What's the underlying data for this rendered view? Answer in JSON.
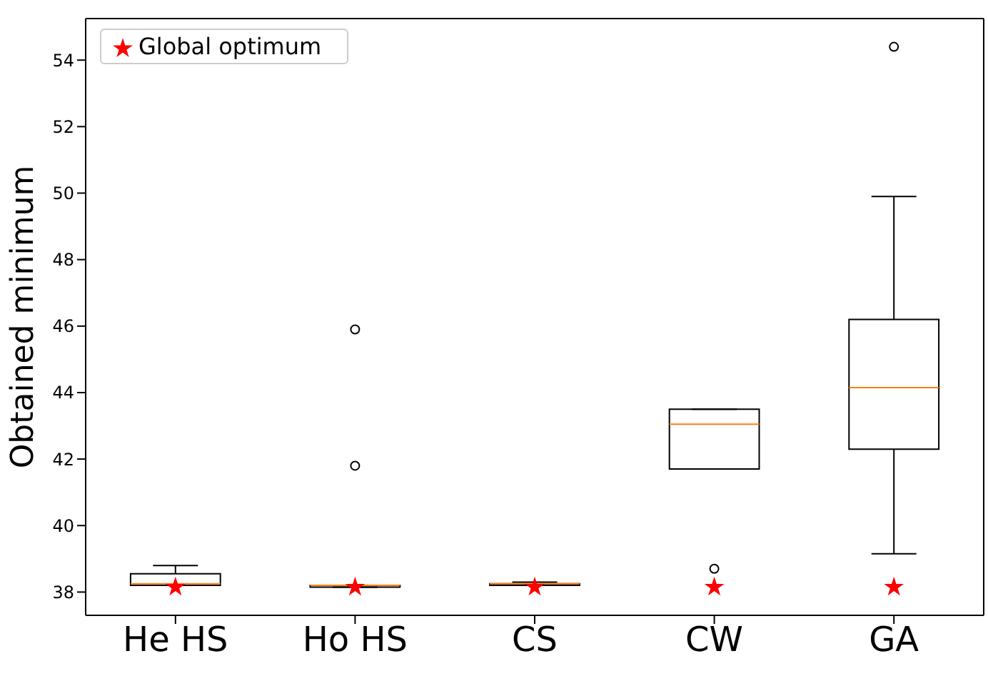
{
  "chart_data": {
    "type": "box",
    "ylabel": "Obtained minimum",
    "categories": [
      "He  HS",
      "Ho  HS",
      "CS",
      "CW",
      "GA"
    ],
    "ylim": [
      37.3,
      55.25
    ],
    "yticks": [
      38,
      40,
      42,
      44,
      46,
      48,
      50,
      52,
      54
    ],
    "legend": "top left",
    "series": [
      {
        "type": "box",
        "color": "#000000",
        "boxes": [
          {
            "low": 38.2,
            "q1": 38.2,
            "median": 38.25,
            "q3": 38.55,
            "high": 38.8
          },
          {
            "low": 38.15,
            "q1": 38.15,
            "median": 38.2,
            "q3": 38.2,
            "high": 38.2,
            "outliers": [
              41.8,
              45.9
            ]
          },
          {
            "low": 38.2,
            "q1": 38.2,
            "median": 38.25,
            "q3": 38.25,
            "high": 38.3
          },
          {
            "low": 41.7,
            "q1": 41.7,
            "median": 43.05,
            "q3": 43.5,
            "high": 43.5,
            "outliers": [
              38.7
            ]
          },
          {
            "low": 39.15,
            "q1": 42.3,
            "median": 44.15,
            "q3": 46.2,
            "high": 49.9,
            "outliers": [
              54.4
            ]
          }
        ]
      },
      {
        "type": "scatter",
        "name": "Global optimum",
        "color": "#ff0000",
        "marker": "star",
        "x": [
          "He  HS",
          "Ho  HS",
          "CS",
          "CW",
          "GA"
        ],
        "values": [
          38.15,
          38.15,
          38.15,
          38.15,
          38.15
        ]
      }
    ]
  }
}
